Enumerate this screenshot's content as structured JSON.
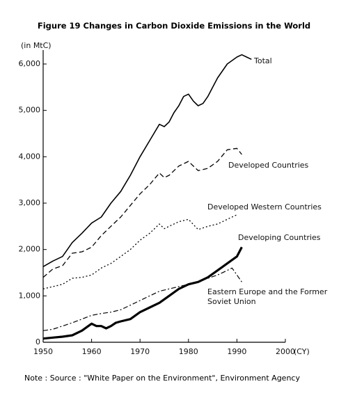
{
  "chart_data": {
    "type": "line",
    "title": "Figure 19 Changes in Carbon Dioxide Emissions in the World",
    "y_label": "(in MtC)",
    "x_label": "(CY)",
    "note": "Note : Source : \"White Paper on the Environment\", Environment Agency",
    "xlim": [
      1950,
      2000
    ],
    "xticks": [
      1950,
      1960,
      1970,
      1980,
      1990,
      2000
    ],
    "ylim": [
      0,
      6300
    ],
    "yticks": [
      0,
      {
        "value": 1000,
        "label": "1,000"
      },
      {
        "value": 2000,
        "label": "2,000"
      },
      {
        "value": 3000,
        "label": "3,000"
      },
      {
        "value": 4000,
        "label": "4,000"
      },
      {
        "value": 5000,
        "label": "5,000"
      },
      {
        "value": 6000,
        "label": "6,000"
      }
    ],
    "series": [
      {
        "name": "Total",
        "color": "#000000",
        "style": "solid",
        "x": [
          1950,
          1952,
          1954,
          1956,
          1958,
          1960,
          1962,
          1964,
          1966,
          1968,
          1970,
          1972,
          1974,
          1975,
          1976,
          1977,
          1978,
          1979,
          1980,
          1981,
          1982,
          1983,
          1984,
          1986,
          1988,
          1990,
          1991,
          1992,
          1993
        ],
        "values": [
          1630,
          1750,
          1850,
          2150,
          2350,
          2570,
          2700,
          3000,
          3250,
          3600,
          4000,
          4350,
          4700,
          4650,
          4750,
          4950,
          5100,
          5300,
          5350,
          5200,
          5100,
          5150,
          5300,
          5700,
          6000,
          6150,
          6200,
          6150,
          6100
        ]
      },
      {
        "name": "Developed Countries",
        "color": "#000000",
        "style": "dashed",
        "x": [
          1950,
          1952,
          1954,
          1956,
          1958,
          1960,
          1962,
          1964,
          1966,
          1968,
          1970,
          1972,
          1974,
          1975,
          1976,
          1978,
          1980,
          1982,
          1984,
          1986,
          1988,
          1990,
          1991
        ],
        "values": [
          1400,
          1580,
          1650,
          1920,
          1950,
          2050,
          2300,
          2500,
          2700,
          2950,
          3200,
          3400,
          3650,
          3550,
          3600,
          3800,
          3900,
          3700,
          3750,
          3900,
          4150,
          4180,
          4050
        ]
      },
      {
        "name": "Developed Western Countries",
        "color": "#000000",
        "style": "dotted",
        "x": [
          1950,
          1952,
          1954,
          1956,
          1958,
          1960,
          1962,
          1964,
          1966,
          1968,
          1970,
          1972,
          1974,
          1975,
          1976,
          1978,
          1980,
          1982,
          1984,
          1986,
          1988,
          1990
        ],
        "values": [
          1150,
          1200,
          1250,
          1380,
          1400,
          1450,
          1600,
          1700,
          1850,
          2000,
          2200,
          2350,
          2550,
          2450,
          2500,
          2600,
          2650,
          2430,
          2500,
          2550,
          2650,
          2750
        ]
      },
      {
        "name": "Developing Countries",
        "color": "#000000",
        "style": "bold",
        "x": [
          1950,
          1952,
          1954,
          1956,
          1958,
          1960,
          1961,
          1962,
          1963,
          1964,
          1965,
          1966,
          1968,
          1970,
          1972,
          1974,
          1976,
          1978,
          1980,
          1982,
          1984,
          1986,
          1988,
          1990,
          1991
        ],
        "values": [
          80,
          100,
          120,
          150,
          250,
          400,
          350,
          350,
          300,
          350,
          420,
          450,
          500,
          650,
          750,
          850,
          1000,
          1150,
          1250,
          1300,
          1400,
          1550,
          1700,
          1850,
          2050
        ]
      },
      {
        "name": "Eastern Europe and the Former Soviet Union",
        "color": "#000000",
        "style": "dashdot",
        "x": [
          1950,
          1952,
          1954,
          1956,
          1958,
          1960,
          1962,
          1964,
          1966,
          1968,
          1970,
          1972,
          1974,
          1976,
          1978,
          1980,
          1982,
          1984,
          1986,
          1988,
          1989,
          1990,
          1991
        ],
        "values": [
          250,
          280,
          350,
          420,
          500,
          580,
          620,
          650,
          700,
          800,
          900,
          1000,
          1100,
          1150,
          1200,
          1250,
          1300,
          1380,
          1450,
          1550,
          1600,
          1450,
          1300
        ]
      }
    ]
  }
}
